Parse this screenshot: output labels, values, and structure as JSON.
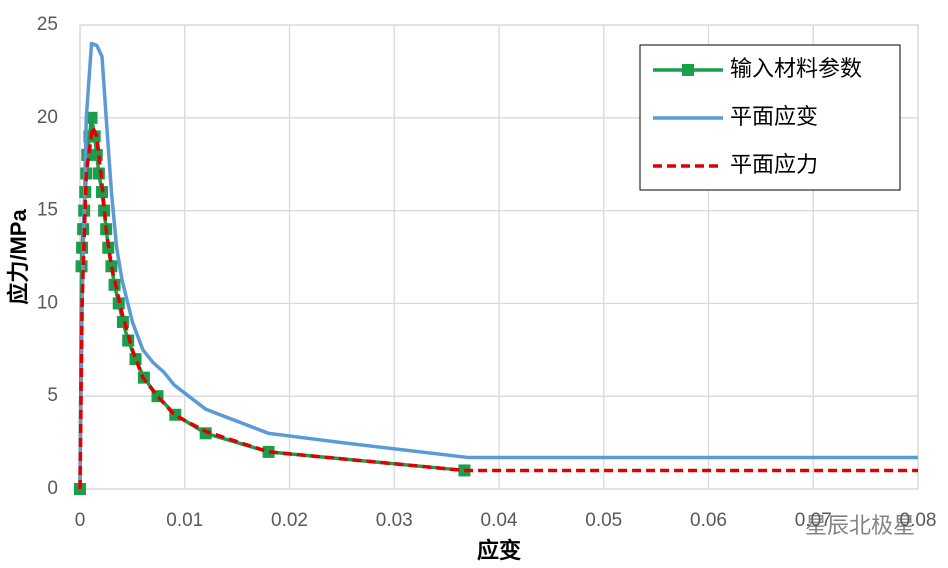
{
  "chart_data": {
    "type": "line",
    "xlabel": "应变",
    "ylabel": "应力/MPa",
    "xlim": [
      0,
      0.08
    ],
    "xticks": [
      0,
      0.01,
      0.02,
      0.03,
      0.04,
      0.05,
      0.06,
      0.07,
      0.08
    ],
    "ylim": [
      0,
      25
    ],
    "yticks": [
      0,
      5,
      10,
      15,
      20,
      25
    ],
    "grid": true,
    "legend": "upper right",
    "watermark": "星辰北极星",
    "series": [
      {
        "name": "输入材料参数",
        "color": "#1a9e4b",
        "marker": "square",
        "dash": "solid",
        "x": [
          0,
          0.00015,
          0.0002,
          0.0003,
          0.0004,
          0.0005,
          0.0006,
          0.0007,
          0.0009,
          0.0011,
          0.0014,
          0.0016,
          0.0018,
          0.0021,
          0.0023,
          0.0025,
          0.0027,
          0.003,
          0.0033,
          0.0037,
          0.0041,
          0.0046,
          0.0053,
          0.0061,
          0.0074,
          0.0091,
          0.012,
          0.018,
          0.0367
        ],
        "values": [
          0,
          12,
          13,
          14,
          15,
          16,
          17,
          18,
          19,
          20,
          19,
          18,
          17,
          16,
          15,
          14,
          13,
          12,
          11,
          10,
          9,
          8,
          7,
          6,
          5,
          4,
          3,
          2,
          1
        ]
      },
      {
        "name": "平面应变",
        "color": "#5b9bd5",
        "marker": "none",
        "dash": "solid",
        "x": [
          0,
          0.0002,
          0.0006,
          0.0011,
          0.0016,
          0.0021,
          0.0025,
          0.003,
          0.0035,
          0.004,
          0.005,
          0.006,
          0.007,
          0.008,
          0.009,
          0.012,
          0.018,
          0.025,
          0.037,
          0.08
        ],
        "values": [
          0,
          10,
          20,
          24,
          23.9,
          23.3,
          20,
          16,
          13,
          11.3,
          9,
          7.5,
          6.8,
          6.3,
          5.6,
          4.3,
          3,
          2.5,
          1.7,
          1.7
        ]
      },
      {
        "name": "平面应力",
        "color": "#e00000",
        "marker": "none",
        "dash": "dashed",
        "x": [
          0,
          0.0002,
          0.0006,
          0.0012,
          0.0016,
          0.002,
          0.0025,
          0.003,
          0.004,
          0.005,
          0.006,
          0.0074,
          0.009,
          0.012,
          0.018,
          0.0367,
          0.08
        ],
        "values": [
          0,
          10,
          17,
          19.5,
          19,
          17,
          14,
          12,
          9.5,
          7.5,
          6,
          5,
          4,
          3.1,
          2,
          1,
          1
        ]
      }
    ]
  }
}
